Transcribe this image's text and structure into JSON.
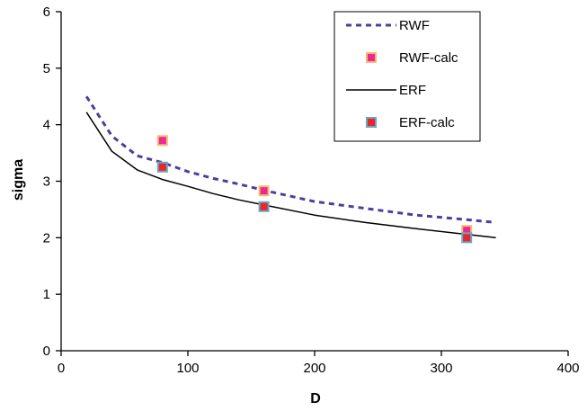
{
  "chart_data": {
    "type": "scatter",
    "title": "",
    "xlabel": "D",
    "ylabel": "sigma",
    "xlim": [
      0,
      400
    ],
    "ylim": [
      0,
      6
    ],
    "xticks": [
      0,
      100,
      200,
      300,
      400
    ],
    "yticks": [
      0,
      1,
      2,
      3,
      4,
      5,
      6
    ],
    "grid": false,
    "legend_position": "top-right",
    "series": [
      {
        "name": "RWF",
        "kind": "line",
        "style": "dotted",
        "color": "#4b3f9e",
        "x": [
          20,
          40,
          60,
          80,
          100,
          120,
          140,
          160,
          200,
          240,
          280,
          320,
          343
        ],
        "y": [
          4.5,
          3.8,
          3.45,
          3.33,
          3.17,
          3.05,
          2.95,
          2.84,
          2.64,
          2.52,
          2.4,
          2.32,
          2.27
        ]
      },
      {
        "name": "RWF-calc",
        "kind": "marker",
        "color": "#ec2a8a",
        "border": "#f5b97c",
        "x": [
          80,
          160,
          320
        ],
        "y": [
          3.72,
          2.83,
          2.13
        ]
      },
      {
        "name": "ERF",
        "kind": "line",
        "style": "solid",
        "color": "#000000",
        "x": [
          20,
          40,
          60,
          80,
          100,
          120,
          140,
          160,
          200,
          240,
          280,
          320,
          343
        ],
        "y": [
          4.22,
          3.53,
          3.2,
          3.03,
          2.91,
          2.78,
          2.67,
          2.58,
          2.4,
          2.27,
          2.16,
          2.06,
          2.0
        ]
      },
      {
        "name": "ERF-calc",
        "kind": "marker",
        "color": "#e8262b",
        "border": "#6aa6c2",
        "x": [
          80,
          160,
          320
        ],
        "y": [
          3.25,
          2.55,
          2.0
        ]
      }
    ]
  }
}
